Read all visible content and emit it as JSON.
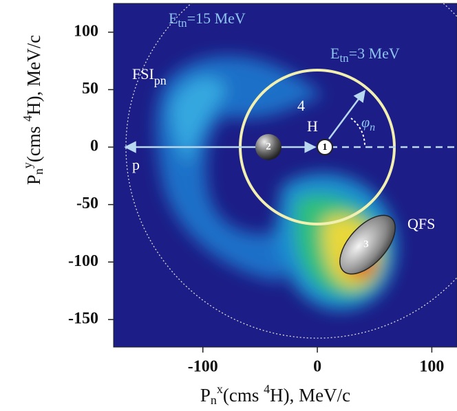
{
  "chart_data": {
    "type": "density-map",
    "xlim": [
      -178,
      122
    ],
    "ylim": [
      -174,
      125
    ],
    "xticks": [
      -100,
      0,
      100
    ],
    "yticks": [
      100,
      50,
      0,
      -50,
      -100,
      -150
    ],
    "x_label": {
      "main": "P",
      "sub": "n",
      "sup": "x",
      "mid": "(cms ",
      "iso": "4",
      "rest": "H), MeV/c"
    },
    "y_label": {
      "main": "P",
      "sub": "n",
      "sup": "y",
      "mid": "(cms ",
      "iso": "4",
      "rest": "H), MeV/c"
    },
    "annotations": {
      "e15": {
        "main": "E",
        "sub": "tn",
        "rest": "=15 MeV"
      },
      "e3": {
        "main": "E",
        "sub": "tn",
        "rest": "=3 MeV"
      },
      "fsi": {
        "main": "FSI",
        "sub": "pn"
      },
      "iso": "4",
      "h": "H",
      "p": "p",
      "qfs": "QFS",
      "phi": {
        "main": "φ",
        "sub": "n"
      },
      "ball1": "1",
      "ball2": "2",
      "ball3": "3"
    }
  }
}
